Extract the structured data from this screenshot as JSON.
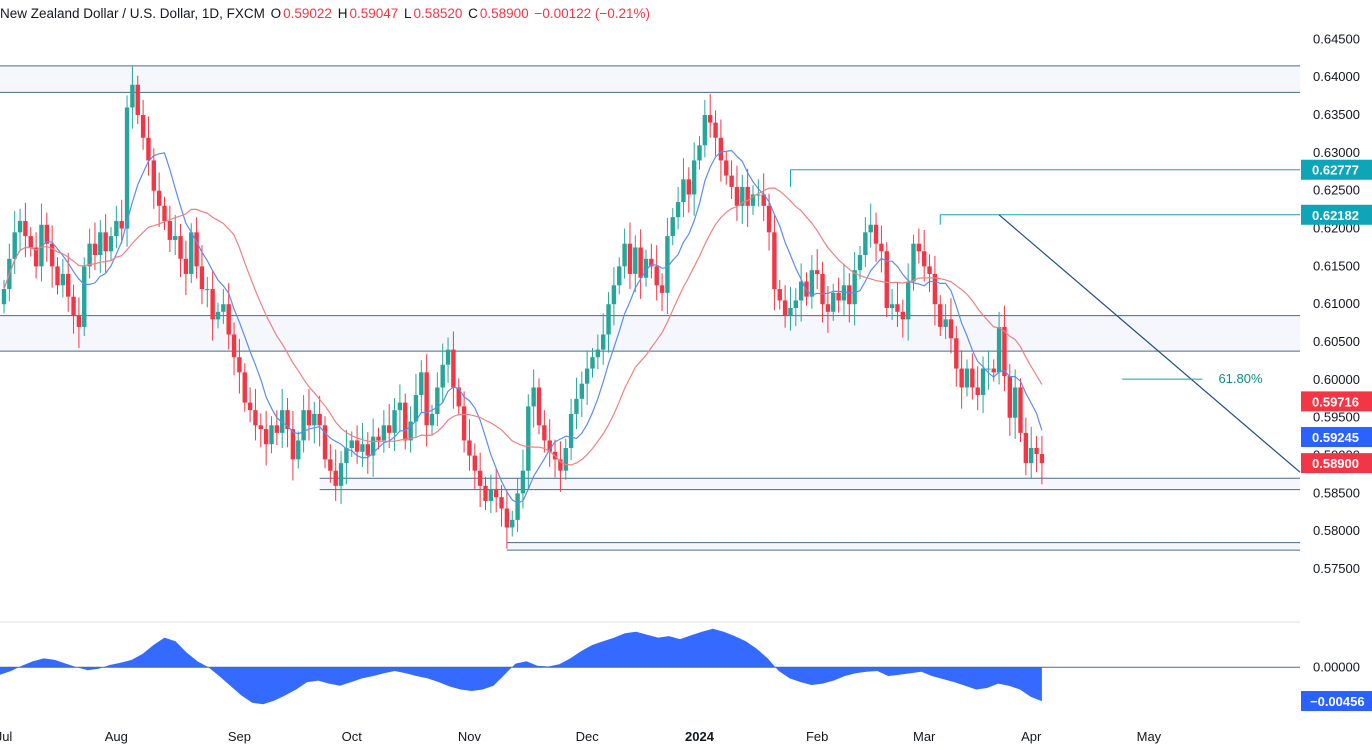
{
  "header": {
    "symbol": "New Zealand Dollar / U.S. Dollar, 1D, FXCM",
    "open_label": "O",
    "open_value": "0.59022",
    "high_label": "H",
    "high_value": "0.59047",
    "low_label": "L",
    "low_value": "0.58520",
    "close_label": "C",
    "close_value": "0.58900",
    "change": "−0.00122 (−0.21%)"
  },
  "colors": {
    "up": "#26a69a",
    "down": "#f23645",
    "ma_fast": "#5b8def",
    "ma_slow": "#f08080",
    "oscillator": "#2962ff",
    "level_line": "#4a6a8a",
    "cyan_line": "#0ea5b8",
    "trendline": "#1f4e8c"
  },
  "chart_data": [
    {
      "type": "candlestick",
      "symbol": "NZDUSD",
      "timeframe": "1D",
      "x_labels": [
        "Jul",
        "Aug",
        "Sep",
        "Oct",
        "Nov",
        "Dec",
        "2024",
        "Feb",
        "Mar",
        "Apr",
        "May"
      ],
      "y_ticks": [
        "0.64500",
        "0.64000",
        "0.63500",
        "0.63000",
        "0.62500",
        "0.62000",
        "0.61500",
        "0.61000",
        "0.60500",
        "0.60000",
        "0.59500",
        "0.59000",
        "0.58500",
        "0.58000",
        "0.57500"
      ],
      "ylim": [
        0.5725,
        0.6465
      ],
      "approx_closes": [
        0.612,
        0.616,
        0.6195,
        0.621,
        0.619,
        0.6175,
        0.615,
        0.6205,
        0.618,
        0.615,
        0.6125,
        0.614,
        0.611,
        0.6085,
        0.607,
        0.615,
        0.618,
        0.6165,
        0.6195,
        0.617,
        0.619,
        0.621,
        0.62,
        0.636,
        0.639,
        0.635,
        0.632,
        0.629,
        0.625,
        0.623,
        0.621,
        0.6185,
        0.619,
        0.616,
        0.614,
        0.6195,
        0.615,
        0.612,
        0.612,
        0.608,
        0.609,
        0.61,
        0.606,
        0.603,
        0.601,
        0.597,
        0.596,
        0.594,
        0.5935,
        0.5915,
        0.594,
        0.593,
        0.596,
        0.5935,
        0.5895,
        0.592,
        0.596,
        0.594,
        0.5955,
        0.594,
        0.5895,
        0.588,
        0.586,
        0.589,
        0.591,
        0.592,
        0.5905,
        0.5915,
        0.59,
        0.5925,
        0.592,
        0.594,
        0.593,
        0.596,
        0.597,
        0.592,
        0.5945,
        0.598,
        0.601,
        0.594,
        0.5955,
        0.599,
        0.602,
        0.604,
        0.599,
        0.5965,
        0.592,
        0.59,
        0.588,
        0.586,
        0.584,
        0.5855,
        0.5845,
        0.583,
        0.5805,
        0.5815,
        0.585,
        0.588,
        0.5965,
        0.599,
        0.594,
        0.592,
        0.5905,
        0.5895,
        0.588,
        0.591,
        0.5955,
        0.5975,
        0.5995,
        0.6015,
        0.603,
        0.604,
        0.606,
        0.61,
        0.6125,
        0.615,
        0.618,
        0.614,
        0.6175,
        0.6135,
        0.616,
        0.615,
        0.6125,
        0.6115,
        0.619,
        0.6215,
        0.6235,
        0.6265,
        0.6245,
        0.629,
        0.631,
        0.635,
        0.634,
        0.632,
        0.629,
        0.627,
        0.6255,
        0.623,
        0.6255,
        0.623,
        0.6245,
        0.6245,
        0.623,
        0.6195,
        0.612,
        0.6105,
        0.6085,
        0.6095,
        0.6105,
        0.613,
        0.611,
        0.6145,
        0.614,
        0.61,
        0.609,
        0.6115,
        0.6105,
        0.6125,
        0.61,
        0.6145,
        0.6165,
        0.6195,
        0.6205,
        0.618,
        0.617,
        0.6095,
        0.61,
        0.609,
        0.608,
        0.613,
        0.618,
        0.617,
        0.615,
        0.614,
        0.61,
        0.607,
        0.608,
        0.6055,
        0.6015,
        0.599,
        0.6015,
        0.599,
        0.598,
        0.6015,
        0.6015,
        0.601,
        0.607,
        0.6005,
        0.595,
        0.599,
        0.593,
        0.589,
        0.591,
        0.5902,
        0.589
      ],
      "moving_averages": [
        {
          "type": "fast MA",
          "last_value": 0.59245
        },
        {
          "type": "slow MA",
          "last_value": 0.59716
        }
      ],
      "horizontal_levels": {
        "resistance_zone_top": [
          0.6415,
          0.638
        ],
        "middle_zone": [
          0.6085,
          0.6038
        ],
        "support_zone": [
          0.587,
          0.5855
        ],
        "lower_support": [
          0.5785,
          0.5775
        ]
      },
      "cyan_levels": [
        0.62777,
        0.62182
      ],
      "fib_label": "61.80%",
      "fib_level": 0.6001,
      "price_labels": [
        {
          "text": "0.62777",
          "kind": "cyan",
          "value": 0.62777
        },
        {
          "text": "0.62182",
          "kind": "cyan",
          "value": 0.62182
        },
        {
          "text": "0.59716",
          "kind": "slow_ma",
          "value": 0.59716
        },
        {
          "text": "0.59245",
          "kind": "fast_ma",
          "value": 0.59245
        },
        {
          "text": "0.58900",
          "kind": "last",
          "value": 0.589
        }
      ]
    },
    {
      "type": "area",
      "name": "oscillator",
      "y_ticks": [
        "0.00000"
      ],
      "last_value_label": "−0.00456",
      "last_value": -0.00456,
      "ylim": [
        -0.0055,
        0.0053
      ],
      "values": [
        -0.001,
        -0.0005,
        0.0002,
        0.0008,
        0.0012,
        0.001,
        0.0005,
        0.0,
        -0.0004,
        -0.0002,
        0.0003,
        0.0006,
        0.001,
        0.0018,
        0.003,
        0.004,
        0.0035,
        0.002,
        0.0008,
        0.0,
        -0.0012,
        -0.0025,
        -0.0038,
        -0.0048,
        -0.005,
        -0.0045,
        -0.0038,
        -0.003,
        -0.002,
        -0.0018,
        -0.0022,
        -0.0025,
        -0.002,
        -0.0015,
        -0.0012,
        -0.0008,
        -0.0005,
        -0.0008,
        -0.0012,
        -0.0015,
        -0.002,
        -0.0026,
        -0.003,
        -0.0032,
        -0.003,
        -0.0025,
        -0.001,
        0.0005,
        0.0008,
        0.0002,
        0.0001,
        0.0004,
        0.0012,
        0.0022,
        0.003,
        0.0035,
        0.004,
        0.0046,
        0.0048,
        0.0044,
        0.004,
        0.0042,
        0.0038,
        0.0043,
        0.0048,
        0.0052,
        0.0048,
        0.0042,
        0.0035,
        0.0025,
        0.0012,
        -0.0005,
        -0.0015,
        -0.002,
        -0.0024,
        -0.0022,
        -0.0018,
        -0.0012,
        -0.0008,
        -0.0006,
        -0.0005,
        -0.0012,
        -0.001,
        -0.0008,
        -0.0006,
        -0.0012,
        -0.0016,
        -0.002,
        -0.0025,
        -0.003,
        -0.0028,
        -0.0022,
        -0.0025,
        -0.003,
        -0.004,
        -0.0046
      ]
    }
  ],
  "axis": {
    "months": [
      {
        "label": "Jul",
        "date_index": 0
      },
      {
        "label": "Aug",
        "date_index": 21
      },
      {
        "label": "Sep",
        "date_index": 44
      },
      {
        "label": "Oct",
        "date_index": 65
      },
      {
        "label": "Nov",
        "date_index": 87
      },
      {
        "label": "Dec",
        "date_index": 109
      },
      {
        "label": "2024",
        "date_index": 130
      },
      {
        "label": "Feb",
        "date_index": 152
      },
      {
        "label": "Mar",
        "date_index": 172
      },
      {
        "label": "Apr",
        "date_index": 192
      },
      {
        "label": "May",
        "date_index": 214
      }
    ]
  }
}
